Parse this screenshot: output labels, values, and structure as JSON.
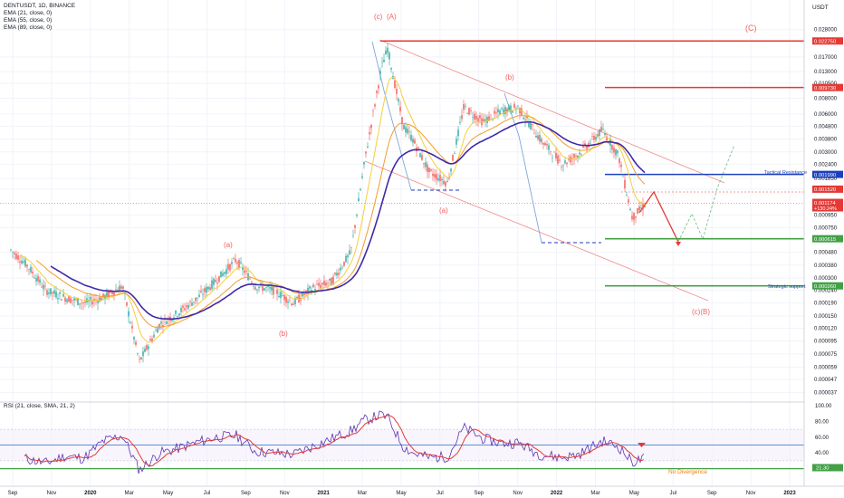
{
  "header": {
    "symbol_line": "DENTUSDT, 1D, BINANCE",
    "indicators": [
      "EMA (21, close, 0)",
      "EMA (55, close, 0)",
      "EMA (89, close, 0)"
    ],
    "rsi_line": "RSI (21, close, SMA, 21, 2)"
  },
  "price_axis": {
    "unit": "USDT",
    "ticks": [
      "0.028000",
      "0.017000",
      "0.013000",
      "0.010500",
      "0.008000",
      "0.006000",
      "0.004800",
      "0.003800",
      "0.003000",
      "0.002400",
      "0.001850",
      "0.001520",
      "0.000950",
      "0.000750",
      "0.000480",
      "0.000380",
      "0.000300",
      "0.000240",
      "0.000190",
      "0.000150",
      "0.000120",
      "0.000095",
      "0.000075",
      "0.000059",
      "0.000047",
      "0.000037"
    ],
    "scale": "log",
    "range": [
      3.5e-05,
      0.045
    ]
  },
  "levels": [
    {
      "value": "0.022750",
      "color": "#e53935"
    },
    {
      "value": "0.009730",
      "color": "#e53935"
    },
    {
      "value": "0.001990",
      "color": "#1e3fbd"
    },
    {
      "value": "0.001520",
      "color": "#e53935"
    },
    {
      "value": "0.000615",
      "color": "#43a047"
    },
    {
      "value": "0.000260",
      "color": "#43a047"
    }
  ],
  "current_price": {
    "value": "0.001174",
    "change": "+130.24%",
    "color": "#e53935"
  },
  "annotations": {
    "tactical": "Tactical Resistance",
    "strategic": "Strategic support",
    "no_divergence": "No Divergence"
  },
  "wave_labels": [
    "(c)",
    "(A)",
    "(C)",
    "(b)",
    "(a)",
    "(a)",
    "(b)",
    "(c)(B)"
  ],
  "rsi_axis": {
    "ticks": [
      "100.00",
      "80.00",
      "60.00",
      "40.00",
      "20.00"
    ],
    "current": "21.30",
    "levels": [
      70,
      50,
      30,
      20
    ]
  },
  "time_axis": {
    "labels": [
      "Sep",
      "Nov",
      "2020",
      "Mar",
      "May",
      "Jul",
      "Sep",
      "Nov",
      "2021",
      "Mar",
      "May",
      "Jul",
      "Sep",
      "Nov",
      "2022",
      "Mar",
      "May",
      "Jul",
      "Sep",
      "Nov",
      "2023"
    ]
  },
  "chart_data": {
    "type": "line",
    "title": "DENTUSDT, 1D, BINANCE",
    "y_scale": "log",
    "ylim": [
      3.5e-05,
      0.045
    ],
    "x": [
      "2019-08-20",
      "2019-09-15",
      "2019-10-15",
      "2019-11-15",
      "2019-12-15",
      "2020-01-15",
      "2020-02-15",
      "2020-03-13",
      "2020-04-15",
      "2020-05-15",
      "2020-06-15",
      "2020-07-15",
      "2020-08-15",
      "2020-09-15",
      "2020-10-15",
      "2020-11-15",
      "2020-12-15",
      "2021-01-15",
      "2021-02-15",
      "2021-03-10",
      "2021-04-05",
      "2021-04-15",
      "2021-05-10",
      "2021-05-25",
      "2021-06-20",
      "2021-07-20",
      "2021-08-15",
      "2021-09-15",
      "2021-10-15",
      "2021-11-10",
      "2021-12-15",
      "2022-01-20",
      "2022-02-15",
      "2022-03-25",
      "2022-04-20",
      "2022-05-12",
      "2022-06-01"
    ],
    "series": [
      {
        "values": [
          0.0005,
          0.00038,
          0.00024,
          0.00021,
          0.00019,
          0.00021,
          0.00026,
          6.5e-05,
          0.00013,
          0.00016,
          0.00021,
          0.00029,
          0.00042,
          0.00026,
          0.00024,
          0.00019,
          0.00025,
          0.00028,
          0.00048,
          0.0027,
          0.014,
          0.02,
          0.0048,
          0.0038,
          0.0021,
          0.0017,
          0.0068,
          0.0052,
          0.0064,
          0.0068,
          0.0038,
          0.0024,
          0.0029,
          0.0045,
          0.0028,
          0.0009,
          0.00115
        ]
      }
    ],
    "rsi": [
      45,
      32,
      27,
      36,
      33,
      55,
      62,
      18,
      40,
      46,
      54,
      60,
      62,
      42,
      40,
      38,
      48,
      58,
      68,
      82,
      88,
      85,
      48,
      40,
      34,
      35,
      72,
      58,
      52,
      53,
      38,
      34,
      38,
      55,
      48,
      28,
      33
    ]
  }
}
